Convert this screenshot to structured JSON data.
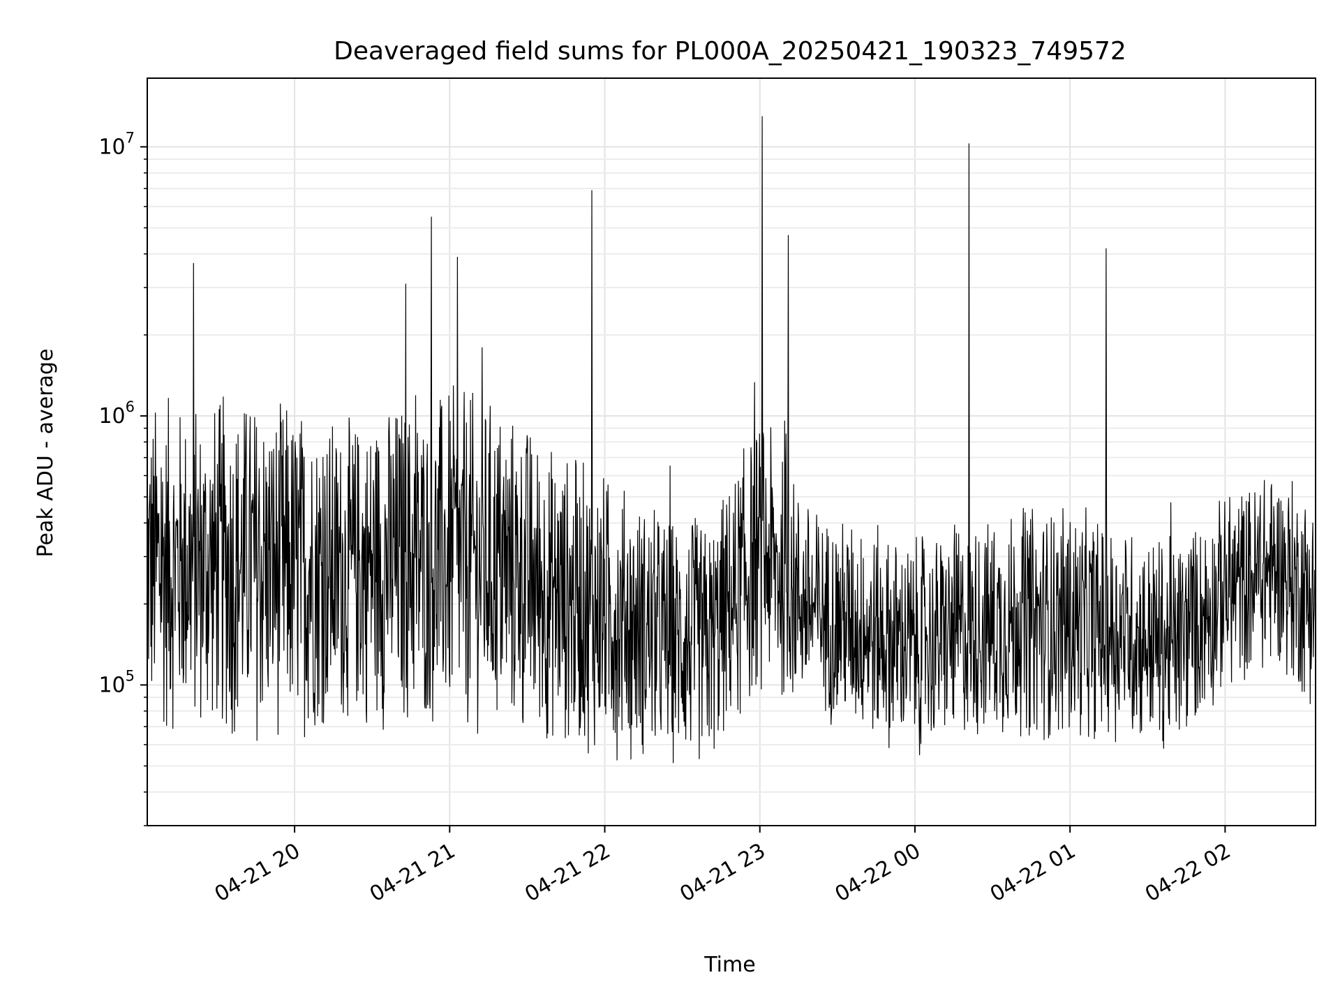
{
  "chart_data": {
    "type": "line",
    "title": "Deaveraged field sums for PL000A_20250421_190323_749572",
    "xlabel": "Time",
    "ylabel": "Peak ADU - average",
    "y_scale": "log",
    "ylim": [
      30000,
      18000000
    ],
    "xlim": [
      "2025-04-21 19:03",
      "2025-04-22 02:35"
    ],
    "grid": true,
    "line_color": "#000000",
    "x_ticks": [
      "04-21 20",
      "04-21 21",
      "04-21 22",
      "04-21 23",
      "04-22 00",
      "04-22 01",
      "04-22 02"
    ],
    "y_ticks": [
      {
        "base": "10",
        "exp": "5",
        "value": 100000
      },
      {
        "base": "10",
        "exp": "6",
        "value": 1000000
      },
      {
        "base": "10",
        "exp": "7",
        "value": 10000000
      }
    ],
    "series": [
      {
        "x": [
          "2025-04-21 19:03",
          "2025-04-21 19:20",
          "2025-04-21 19:40",
          "2025-04-21 20:00",
          "2025-04-21 20:20",
          "2025-04-21 20:40",
          "2025-04-21 21:00",
          "2025-04-21 21:20",
          "2025-04-21 21:40",
          "2025-04-21 22:00",
          "2025-04-21 22:20",
          "2025-04-21 22:40",
          "2025-04-21 23:00",
          "2025-04-21 23:20",
          "2025-04-21 23:40",
          "2025-04-22 00:00",
          "2025-04-22 00:20",
          "2025-04-22 00:40",
          "2025-04-22 01:00",
          "2025-04-22 01:20",
          "2025-04-22 01:40",
          "2025-04-22 02:00",
          "2025-04-22 02:20",
          "2025-04-22 02:35"
        ],
        "low": [
          80000,
          85000,
          75000,
          80000,
          90000,
          85000,
          85000,
          80000,
          75000,
          70000,
          65000,
          60000,
          120000,
          100000,
          80000,
          70000,
          80000,
          80000,
          80000,
          80000,
          70000,
          120000,
          150000,
          100000
        ],
        "high": [
          1050000,
          1000000,
          1100000,
          1000000,
          850000,
          1050000,
          1100000,
          1050000,
          700000,
          550000,
          400000,
          350000,
          900000,
          400000,
          350000,
          300000,
          350000,
          400000,
          400000,
          350000,
          300000,
          450000,
          550000,
          450000
        ],
        "spikes": [
          {
            "x": "2025-04-21 19:21",
            "y": 3700000
          },
          {
            "x": "2025-04-21 20:43",
            "y": 3100000
          },
          {
            "x": "2025-04-21 20:53",
            "y": 5500000
          },
          {
            "x": "2025-04-21 21:03",
            "y": 3900000
          },
          {
            "x": "2025-04-21 21:55",
            "y": 6900000
          },
          {
            "x": "2025-04-21 23:01",
            "y": 13000000
          },
          {
            "x": "2025-04-21 23:11",
            "y": 4700000
          },
          {
            "x": "2025-04-22 00:21",
            "y": 10300000
          },
          {
            "x": "2025-04-22 01:14",
            "y": 4200000
          }
        ]
      }
    ]
  }
}
